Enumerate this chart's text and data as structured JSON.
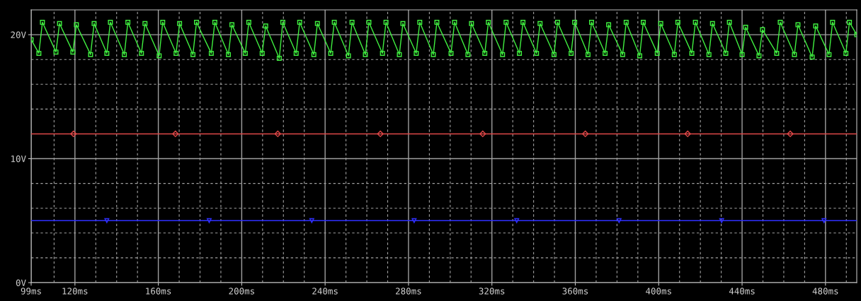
{
  "chart_data": {
    "type": "line",
    "xlim": [
      99,
      495
    ],
    "ylim": [
      0,
      22
    ],
    "xticks": [
      {
        "value": 99,
        "label": "99ms"
      },
      {
        "value": 110,
        "label": null
      },
      {
        "value": 120,
        "label": "120ms"
      },
      {
        "value": 130,
        "label": null
      },
      {
        "value": 140,
        "label": null
      },
      {
        "value": 150,
        "label": null
      },
      {
        "value": 160,
        "label": "160ms"
      },
      {
        "value": 170,
        "label": null
      },
      {
        "value": 180,
        "label": null
      },
      {
        "value": 190,
        "label": null
      },
      {
        "value": 200,
        "label": "200ms"
      },
      {
        "value": 210,
        "label": null
      },
      {
        "value": 220,
        "label": null
      },
      {
        "value": 230,
        "label": null
      },
      {
        "value": 240,
        "label": "240ms"
      },
      {
        "value": 250,
        "label": null
      },
      {
        "value": 260,
        "label": null
      },
      {
        "value": 270,
        "label": null
      },
      {
        "value": 280,
        "label": "280ms"
      },
      {
        "value": 290,
        "label": null
      },
      {
        "value": 300,
        "label": null
      },
      {
        "value": 310,
        "label": null
      },
      {
        "value": 320,
        "label": "320ms"
      },
      {
        "value": 330,
        "label": null
      },
      {
        "value": 340,
        "label": null
      },
      {
        "value": 350,
        "label": null
      },
      {
        "value": 360,
        "label": "360ms"
      },
      {
        "value": 370,
        "label": null
      },
      {
        "value": 380,
        "label": null
      },
      {
        "value": 390,
        "label": null
      },
      {
        "value": 400,
        "label": "400ms"
      },
      {
        "value": 410,
        "label": null
      },
      {
        "value": 420,
        "label": null
      },
      {
        "value": 430,
        "label": null
      },
      {
        "value": 440,
        "label": "440ms"
      },
      {
        "value": 450,
        "label": null
      },
      {
        "value": 460,
        "label": null
      },
      {
        "value": 470,
        "label": null
      },
      {
        "value": 480,
        "label": "480ms"
      },
      {
        "value": 490,
        "label": null
      }
    ],
    "yticks": [
      {
        "value": 0,
        "label": "0V"
      },
      {
        "value": 2,
        "label": null
      },
      {
        "value": 4,
        "label": null
      },
      {
        "value": 6,
        "label": null
      },
      {
        "value": 8,
        "label": null
      },
      {
        "value": 10,
        "label": "10V"
      },
      {
        "value": 14,
        "label": null
      },
      {
        "value": 16,
        "label": null
      },
      {
        "value": 18,
        "label": null
      },
      {
        "value": 20,
        "label": "20V"
      }
    ],
    "grid": true,
    "series": [
      {
        "color": "#40f040",
        "marker": "square",
        "x": [
          99,
          102.7,
          104.4,
          110.9,
          112.6,
          119,
          120.7,
          127.5,
          129.2,
          135.3,
          137,
          143.7,
          145.4,
          151.9,
          153.6,
          160.4,
          162.1,
          168.5,
          170.2,
          176.6,
          178.3,
          185.4,
          187.1,
          193.6,
          195.3,
          201.7,
          203.4,
          209.8,
          211.5,
          218,
          219.7,
          226.1,
          227.8,
          234.6,
          236.3,
          242.7,
          244.4,
          251.2,
          252.9,
          259.3,
          261,
          267.5,
          269.2,
          275.6,
          277.3,
          283.7,
          285.4,
          291.9,
          293.6,
          300.4,
          302.1,
          308.5,
          310.2,
          316.6,
          318.3,
          325.1,
          326.8,
          333.2,
          334.9,
          341.4,
          343.1,
          349.8,
          351.5,
          358,
          359.7,
          366.1,
          367.8,
          374.3,
          376,
          382.7,
          384.4,
          390.9,
          392.6,
          399.3,
          401,
          407.5,
          409.2,
          415.9,
          417.6,
          424.1,
          425.8,
          432.2,
          433.9,
          440,
          441.7,
          448.1,
          449.8,
          456.6,
          458.3,
          465.1,
          466.8,
          473.6,
          475.3,
          481.7,
          483.4,
          489.8,
          491.5,
          495
        ],
        "values": [
          19.6,
          18.5,
          21.0,
          18.6,
          20.9,
          18.6,
          20.8,
          18.4,
          20.9,
          18.5,
          21.0,
          18.4,
          21.0,
          18.5,
          20.9,
          18.3,
          21.0,
          18.5,
          20.9,
          18.4,
          21.0,
          18.5,
          21.0,
          18.4,
          20.8,
          18.5,
          21.0,
          18.5,
          20.7,
          18.1,
          21.0,
          18.5,
          21.0,
          18.4,
          20.9,
          18.5,
          21.0,
          18.3,
          21.0,
          18.4,
          21.0,
          18.5,
          21.0,
          18.4,
          20.9,
          18.5,
          21.0,
          18.4,
          21.0,
          18.5,
          21.0,
          18.4,
          20.9,
          18.5,
          21.0,
          18.4,
          21.0,
          18.5,
          21.0,
          18.5,
          20.9,
          18.4,
          21.0,
          18.5,
          21.0,
          18.4,
          21.0,
          18.5,
          20.8,
          18.4,
          21.0,
          18.3,
          21.0,
          18.5,
          20.9,
          18.4,
          21.0,
          18.5,
          21.0,
          18.4,
          20.9,
          18.5,
          21.0,
          18.4,
          20.6,
          18.3,
          20.4,
          18.5,
          21.0,
          18.4,
          20.8,
          18.2,
          20.7,
          18.4,
          21.0,
          18.5,
          21.0,
          20.0
        ]
      },
      {
        "color": "#e04848",
        "marker": "diamond",
        "x": [
          99,
          119.3,
          168.2,
          217.3,
          266.5,
          315.6,
          364.8,
          413.9,
          463.1,
          495
        ],
        "values": [
          12,
          12,
          12,
          12,
          12,
          12,
          12,
          12,
          12,
          12
        ]
      },
      {
        "color": "#3030ff",
        "marker": "triangle",
        "x": [
          99,
          135.3,
          184.4,
          233.6,
          282.7,
          331.9,
          381,
          430.2,
          479.3,
          495
        ],
        "values": [
          5,
          5,
          5,
          5,
          5,
          5,
          5,
          5,
          5,
          5
        ]
      }
    ]
  }
}
